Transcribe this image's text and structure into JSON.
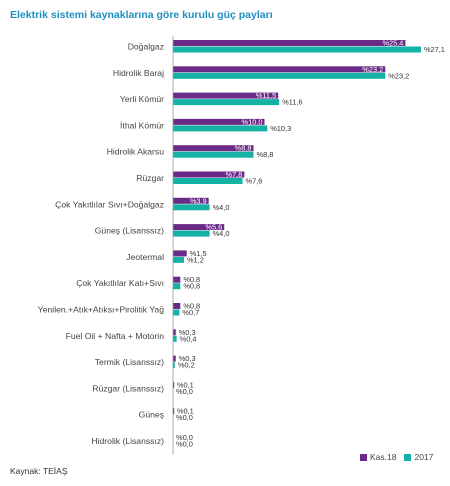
{
  "colors": {
    "kas18": "#6b2a87",
    "y2017": "#14b2a5",
    "axis": "#999999"
  },
  "chart_data": {
    "type": "bar",
    "orientation": "horizontal",
    "title": "Elektrik sistemi kaynaklarına göre kurulu güç payları",
    "source": "Kaynak: TEİAŞ",
    "categories": [
      "Doğalgaz",
      "Hidrolik Baraj",
      "Yerli Kömür",
      "İthal Kömür",
      "Hidrolik Akarsu",
      "Rüzgar",
      "Çok Yakıtlılar Sıvı+Doğalgaz",
      "Güneş (Lisanssız)",
      "Jeotermal",
      "Çok Yakıtlılar Katı+Sıvı",
      "Yenilen.+Atık+Atıksı+Pirolitik Yağ",
      "Fuel Oil + Nafta + Motorin",
      "Termik (Lisanssız)",
      "Rüzgar (Lisanssız)",
      "Güneş",
      "Hidrolik (Lisanssız)"
    ],
    "series": [
      {
        "name": "Kas.18",
        "values": [
          25.4,
          23.2,
          11.5,
          10.0,
          8.8,
          7.8,
          3.9,
          5.6,
          1.5,
          0.8,
          0.8,
          0.3,
          0.3,
          0.1,
          0.1,
          0.0
        ],
        "labels": [
          "%25,4",
          "%23,2",
          "%11,5",
          "%10,0",
          "%8,8",
          "%7,8",
          "%3,9",
          "%5,6",
          "%1,5",
          "%0,8",
          "%0,8",
          "%0,3",
          "%0,3",
          "%0,1",
          "%0,1",
          "%0,0"
        ]
      },
      {
        "name": "2017",
        "values": [
          27.1,
          23.2,
          11.6,
          10.3,
          8.8,
          7.6,
          4.0,
          4.0,
          1.2,
          0.8,
          0.7,
          0.4,
          0.2,
          0.0,
          0.0,
          0.0
        ],
        "labels": [
          "%27,1",
          "%23,2",
          "%11,6",
          "%10,3",
          "%8,8",
          "%7,6",
          "%4,0",
          "%4,0",
          "%1,2",
          "%0,8",
          "%0,7",
          "%0,4",
          "%0,2",
          "%0,0",
          "%0,0",
          "%0,0"
        ]
      }
    ],
    "grid": false,
    "legend_position": "bottom-right"
  }
}
